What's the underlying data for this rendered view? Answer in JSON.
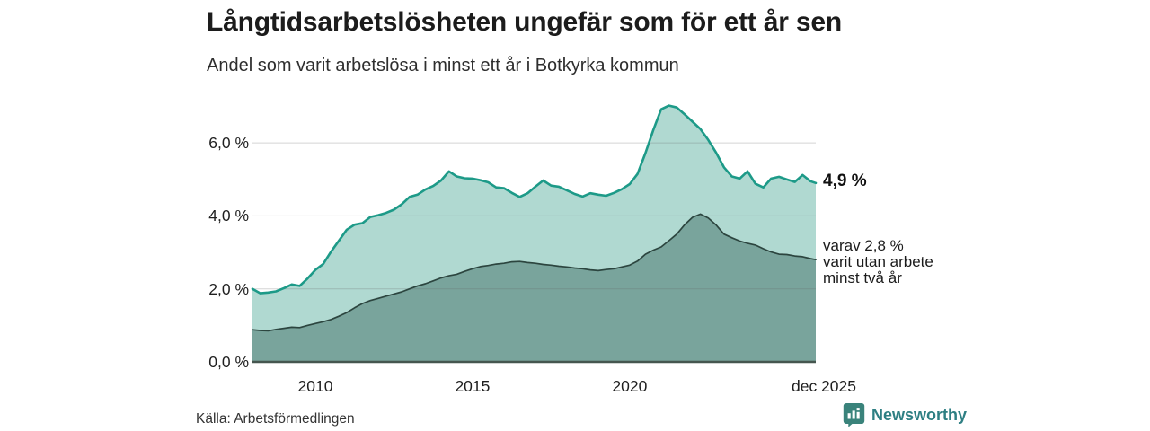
{
  "header": {
    "title": "Långtidsarbetslösheten ungefär som för ett år sen",
    "subtitle": "Andel som varit arbetslösa i minst ett år i Botkyrka kommun"
  },
  "chart_data": {
    "type": "area",
    "title": "Långtidsarbetslösheten ungefär som för ett år sen",
    "subtitle": "Andel som varit arbetslösa i minst ett år i Botkyrka kommun",
    "unit": "%",
    "grid": true,
    "xlim": [
      2008.0,
      2025.92
    ],
    "ylim": [
      0,
      7.2
    ],
    "x": [
      2008.0,
      2008.25,
      2008.5,
      2008.75,
      2009.0,
      2009.25,
      2009.5,
      2009.75,
      2010.0,
      2010.25,
      2010.5,
      2010.75,
      2011.0,
      2011.25,
      2011.5,
      2011.75,
      2012.0,
      2012.25,
      2012.5,
      2012.75,
      2013.0,
      2013.25,
      2013.5,
      2013.75,
      2014.0,
      2014.25,
      2014.5,
      2014.75,
      2015.0,
      2015.25,
      2015.5,
      2015.75,
      2016.0,
      2016.25,
      2016.5,
      2016.75,
      2017.0,
      2017.25,
      2017.5,
      2017.75,
      2018.0,
      2018.25,
      2018.5,
      2018.75,
      2019.0,
      2019.25,
      2019.5,
      2019.75,
      2020.0,
      2020.25,
      2020.5,
      2020.75,
      2021.0,
      2021.25,
      2021.5,
      2021.75,
      2022.0,
      2022.25,
      2022.5,
      2022.75,
      2023.0,
      2023.25,
      2023.5,
      2023.75,
      2024.0,
      2024.25,
      2024.5,
      2024.75,
      2025.0,
      2025.25,
      2025.5,
      2025.75,
      2025.92
    ],
    "series": [
      {
        "id": "arbetslosa-minst-ett-ar",
        "stroke": "#1d9a88",
        "fill": "#b0d9d1",
        "values": [
          2.0,
          1.88,
          1.9,
          1.93,
          2.02,
          2.12,
          2.08,
          2.28,
          2.52,
          2.68,
          3.02,
          3.32,
          3.62,
          3.76,
          3.8,
          3.97,
          4.02,
          4.08,
          4.17,
          4.32,
          4.52,
          4.58,
          4.72,
          4.82,
          4.97,
          5.22,
          5.08,
          5.03,
          5.02,
          4.98,
          4.92,
          4.78,
          4.76,
          4.63,
          4.52,
          4.62,
          4.8,
          4.97,
          4.83,
          4.8,
          4.7,
          4.6,
          4.53,
          4.62,
          4.58,
          4.55,
          4.63,
          4.73,
          4.87,
          5.15,
          5.72,
          6.35,
          6.92,
          7.02,
          6.97,
          6.78,
          6.58,
          6.38,
          6.08,
          5.73,
          5.33,
          5.08,
          5.02,
          5.22,
          4.88,
          4.78,
          5.02,
          5.07,
          5.0,
          4.93,
          5.12,
          4.95,
          4.9
        ]
      },
      {
        "id": "utan-arbete-minst-tva-ar",
        "stroke": "#2c453f",
        "fill": "#79a49c",
        "values": [
          0.88,
          0.86,
          0.85,
          0.89,
          0.92,
          0.95,
          0.94,
          1.0,
          1.05,
          1.1,
          1.16,
          1.25,
          1.35,
          1.48,
          1.6,
          1.68,
          1.74,
          1.8,
          1.86,
          1.92,
          2.0,
          2.08,
          2.14,
          2.22,
          2.3,
          2.36,
          2.4,
          2.48,
          2.55,
          2.61,
          2.64,
          2.68,
          2.7,
          2.74,
          2.75,
          2.72,
          2.7,
          2.67,
          2.65,
          2.62,
          2.6,
          2.57,
          2.55,
          2.52,
          2.5,
          2.53,
          2.55,
          2.6,
          2.65,
          2.76,
          2.95,
          3.06,
          3.15,
          3.32,
          3.5,
          3.76,
          3.96,
          4.05,
          3.94,
          3.75,
          3.5,
          3.4,
          3.31,
          3.25,
          3.2,
          3.1,
          3.01,
          2.95,
          2.94,
          2.9,
          2.88,
          2.83,
          2.8
        ]
      }
    ],
    "y_ticks": [
      {
        "value": 6,
        "label": "6,0 %"
      },
      {
        "value": 4,
        "label": "4,0 %"
      },
      {
        "value": 2,
        "label": "2,0 %"
      },
      {
        "value": 0,
        "label": "0,0 %"
      }
    ],
    "x_ticks": [
      {
        "value": 2010,
        "label": "2010"
      },
      {
        "value": 2015,
        "label": "2015"
      },
      {
        "value": 2020,
        "label": "2020"
      },
      {
        "value": 2025.92,
        "label": "dec 2025"
      }
    ],
    "annotations": {
      "end_value": "4,9 %",
      "secondary_line1": "varav 2,8 %",
      "secondary_line2": "varit utan arbete",
      "secondary_line3": "minst två år"
    }
  },
  "footer": {
    "source": "Källa: Arbetsförmedlingen",
    "brand": "Newsworthy"
  },
  "colors": {
    "accent_teal": "#1d9a88",
    "light_fill": "#b0d9d1",
    "dark_fill": "#79a49c",
    "dark_stroke": "#2c453f",
    "baseline": "#45564f",
    "gridline": "#d9d9d9",
    "brand_teal": "#2e7f83",
    "brand_icon": "#3a837b"
  }
}
